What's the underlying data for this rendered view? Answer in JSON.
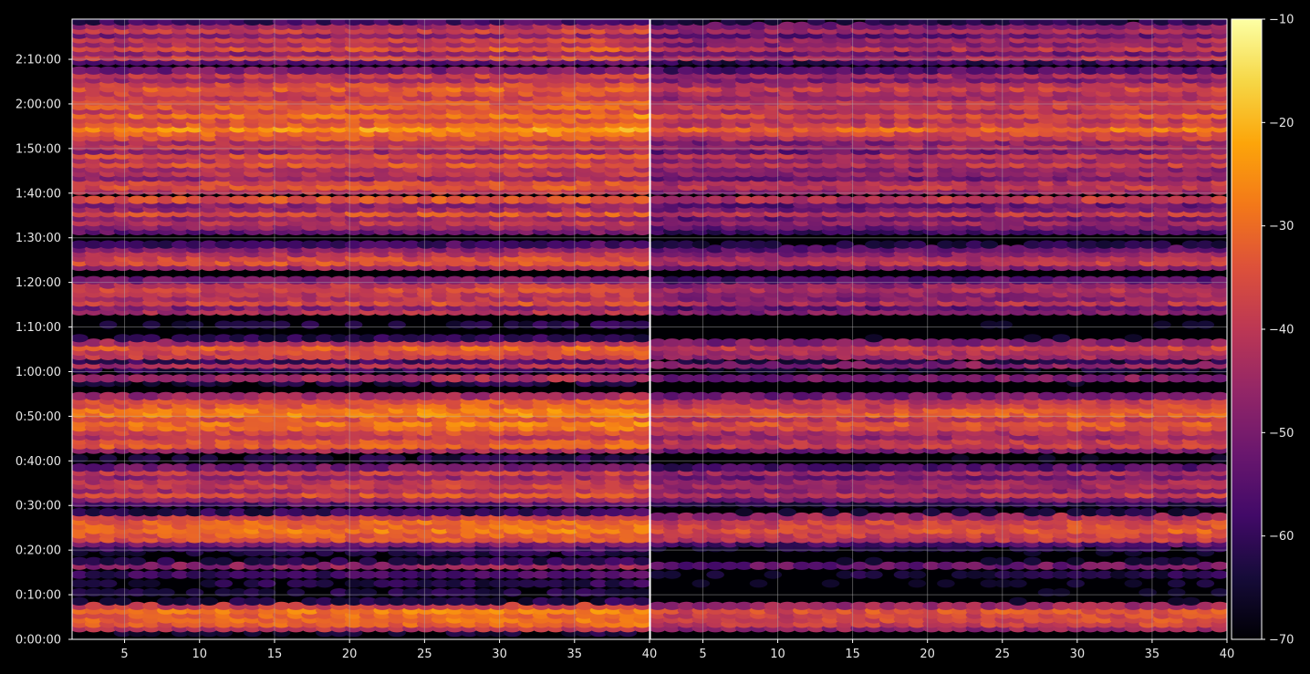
{
  "chart_data": {
    "type": "heatmap",
    "title": "",
    "panels": [
      {
        "name": "",
        "x_range": [
          1.5,
          40
        ],
        "x_ticks": [
          5,
          10,
          15,
          20,
          25,
          30,
          35,
          40
        ]
      },
      {
        "name": "",
        "x_range": [
          1.5,
          40
        ],
        "x_ticks": [
          5,
          10,
          15,
          20,
          25,
          30,
          35,
          40
        ]
      }
    ],
    "y_ticks": [
      "0:00:00",
      "0:10:00",
      "0:20:00",
      "0:30:00",
      "0:40:00",
      "0:50:00",
      "1:00:00",
      "1:10:00",
      "1:20:00",
      "1:30:00",
      "1:40:00",
      "1:50:00",
      "2:00:00",
      "2:10:00"
    ],
    "y_range_minutes": [
      0,
      139
    ],
    "grid": true,
    "colormap": "inferno",
    "colorbar": {
      "min": -70,
      "max": -10,
      "ticks": [
        "−10",
        "−20",
        "−30",
        "−40",
        "−50",
        "−60",
        "−70"
      ]
    },
    "row_levels": {
      "comment_units": "dB level per time row (minutes)",
      "rows": [
        [
          1,
          -68
        ],
        [
          2,
          -42
        ],
        [
          3,
          -34
        ],
        [
          4,
          -32
        ],
        [
          5,
          -33
        ],
        [
          6,
          -30
        ],
        [
          7,
          -40
        ],
        [
          8,
          -66
        ],
        [
          10,
          -66
        ],
        [
          12,
          -64
        ],
        [
          14,
          -60
        ],
        [
          16,
          -48
        ],
        [
          17,
          -64
        ],
        [
          19,
          -66
        ],
        [
          20,
          -60
        ],
        [
          21,
          -52
        ],
        [
          22,
          -36
        ],
        [
          23,
          -34
        ],
        [
          24,
          -30
        ],
        [
          25,
          -32
        ],
        [
          26,
          -33
        ],
        [
          27,
          -40
        ],
        [
          28,
          -62
        ],
        [
          30,
          -58
        ],
        [
          31,
          -46
        ],
        [
          32,
          -36
        ],
        [
          33,
          -44
        ],
        [
          34,
          -40
        ],
        [
          35,
          -42
        ],
        [
          36,
          -48
        ],
        [
          37,
          -40
        ],
        [
          38,
          -52
        ],
        [
          40,
          -66
        ],
        [
          42,
          -46
        ],
        [
          43,
          -34
        ],
        [
          44,
          -36
        ],
        [
          45,
          -42
        ],
        [
          46,
          -38
        ],
        [
          47,
          -32
        ],
        [
          48,
          -30
        ],
        [
          49,
          -36
        ],
        [
          50,
          -28
        ],
        [
          51,
          -30
        ],
        [
          52,
          -34
        ],
        [
          53,
          -36
        ],
        [
          54,
          -46
        ],
        [
          57,
          -66
        ],
        [
          58,
          -46
        ],
        [
          60,
          -62
        ],
        [
          61,
          -44
        ],
        [
          62,
          -60
        ],
        [
          63,
          -40
        ],
        [
          64,
          -38
        ],
        [
          65,
          -34
        ],
        [
          66,
          -44
        ],
        [
          67,
          -64
        ],
        [
          70,
          -66
        ],
        [
          73,
          -44
        ],
        [
          74,
          -50
        ],
        [
          75,
          -38
        ],
        [
          76,
          -44
        ],
        [
          77,
          -42
        ],
        [
          78,
          -38
        ],
        [
          79,
          -42
        ],
        [
          80,
          -52
        ],
        [
          83,
          -46
        ],
        [
          84,
          -36
        ],
        [
          85,
          -38
        ],
        [
          86,
          -44
        ],
        [
          87,
          -50
        ],
        [
          88,
          -60
        ],
        [
          91,
          -54
        ],
        [
          92,
          -48
        ],
        [
          93,
          -42
        ],
        [
          94,
          -48
        ],
        [
          95,
          -36
        ],
        [
          96,
          -46
        ],
        [
          97,
          -50
        ],
        [
          98,
          -36
        ],
        [
          100,
          -42
        ],
        [
          101,
          -36
        ],
        [
          102,
          -38
        ],
        [
          103,
          -48
        ],
        [
          104,
          -42
        ],
        [
          105,
          -44
        ],
        [
          106,
          -36
        ],
        [
          107,
          -42
        ],
        [
          108,
          -36
        ],
        [
          109,
          -48
        ],
        [
          110,
          -40
        ],
        [
          111,
          -44
        ],
        [
          112,
          -36
        ],
        [
          113,
          -32
        ],
        [
          114,
          -26
        ],
        [
          115,
          -34
        ],
        [
          116,
          -36
        ],
        [
          117,
          -30
        ],
        [
          118,
          -38
        ],
        [
          119,
          -34
        ],
        [
          120,
          -36
        ],
        [
          121,
          -40
        ],
        [
          122,
          -38
        ],
        [
          123,
          -34
        ],
        [
          124,
          -38
        ],
        [
          125,
          -46
        ],
        [
          126,
          -40
        ],
        [
          127,
          -52
        ],
        [
          129,
          -56
        ],
        [
          130,
          -38
        ],
        [
          131,
          -48
        ],
        [
          132,
          -36
        ],
        [
          133,
          -44
        ],
        [
          134,
          -40
        ],
        [
          135,
          -50
        ],
        [
          136,
          -40
        ],
        [
          137,
          -46
        ],
        [
          138,
          -60
        ]
      ]
    },
    "panel_offsets_db": [
      0,
      -6
    ]
  }
}
